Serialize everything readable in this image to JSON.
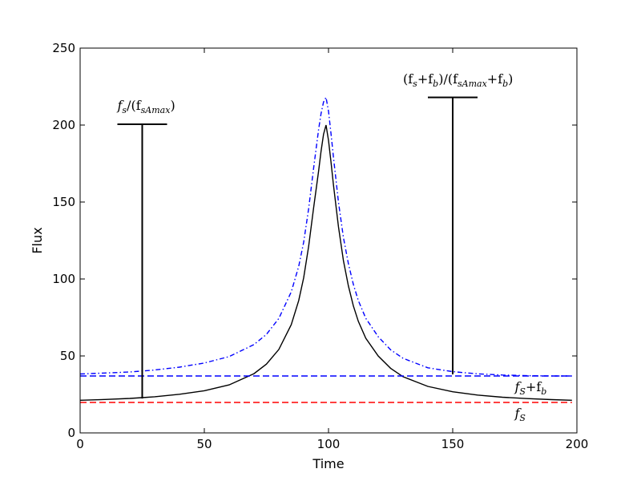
{
  "chart_data": {
    "type": "line",
    "title": "",
    "xlabel": "Time",
    "ylabel": "Flux",
    "xlim": [
      0,
      200
    ],
    "ylim": [
      0,
      250
    ],
    "xticks": [
      "0",
      "50",
      "100",
      "150",
      "200"
    ],
    "yticks": [
      "0",
      "50",
      "100",
      "150",
      "200",
      "250"
    ],
    "grid": false,
    "series": [
      {
        "style": "solid",
        "color": "#000000",
        "x": [
          0,
          10,
          20,
          25,
          30,
          40,
          50,
          60,
          70,
          75,
          80,
          85,
          88,
          90,
          92,
          94,
          96,
          97,
          98,
          99,
          100,
          101,
          102,
          104,
          106,
          108,
          110,
          112,
          115,
          120,
          125,
          130,
          140,
          150,
          160,
          170,
          180,
          190,
          198
        ],
        "y": [
          21.2,
          21.7,
          22.4,
          22.9,
          23.5,
          25.1,
          27.4,
          31.2,
          38.5,
          44.7,
          54.2,
          70.3,
          86.0,
          100.8,
          121.2,
          146.2,
          170.0,
          183.0,
          194.0,
          200.0,
          190.0,
          176.0,
          161.0,
          134.0,
          112.0,
          95.5,
          82.5,
          72.5,
          61.5,
          50.0,
          42.0,
          36.5,
          30.2,
          26.7,
          24.6,
          23.2,
          22.3,
          21.6,
          21.2
        ]
      },
      {
        "style": "dashdot",
        "color": "#0000ff",
        "x": [
          0,
          10,
          20,
          25,
          30,
          40,
          50,
          60,
          70,
          75,
          80,
          85,
          88,
          90,
          92,
          94,
          96,
          97,
          98,
          99,
          100,
          101,
          102,
          104,
          106,
          108,
          110,
          112,
          115,
          120,
          125,
          130,
          140,
          150,
          160,
          170,
          180,
          190,
          198
        ],
        "y": [
          38.3,
          38.9,
          39.6,
          40.2,
          40.9,
          42.7,
          45.4,
          49.6,
          57.4,
          64.0,
          74.4,
          91.6,
          108.2,
          123.9,
          145.6,
          172.0,
          197.0,
          207.5,
          215.0,
          218.0,
          209.0,
          194.5,
          179.0,
          150.0,
          127.0,
          110.0,
          96.5,
          86.0,
          74.5,
          62.5,
          54.0,
          48.5,
          42.3,
          39.8,
          38.4,
          37.6,
          37.2,
          37.0,
          37.0
        ]
      },
      {
        "style": "dashed",
        "color": "#0000ff",
        "x": [
          0,
          198
        ],
        "y": [
          37.0,
          37.0
        ]
      },
      {
        "style": "dashed",
        "color": "#ff0000",
        "x": [
          0,
          198
        ],
        "y": [
          19.8,
          19.8
        ]
      }
    ],
    "markers": [
      {
        "x": 25,
        "y_low": 22.3,
        "y_high": 200.5,
        "cap_x": [
          15,
          35
        ]
      },
      {
        "x": 150,
        "y_low": 38.0,
        "y_high": 218.0,
        "cap_x": [
          140,
          160
        ]
      }
    ],
    "annotations": [
      {
        "text": "(f_s+f_b)/(f_sA_max+f_b)",
        "x": 130,
        "y": 227
      },
      {
        "text": "f_s/(f_sA_max)",
        "x": 15,
        "y": 210
      },
      {
        "text": "f_S+f_b",
        "x": 175,
        "y": 27
      },
      {
        "text": "f_S",
        "x": 175,
        "y": 10
      }
    ]
  }
}
